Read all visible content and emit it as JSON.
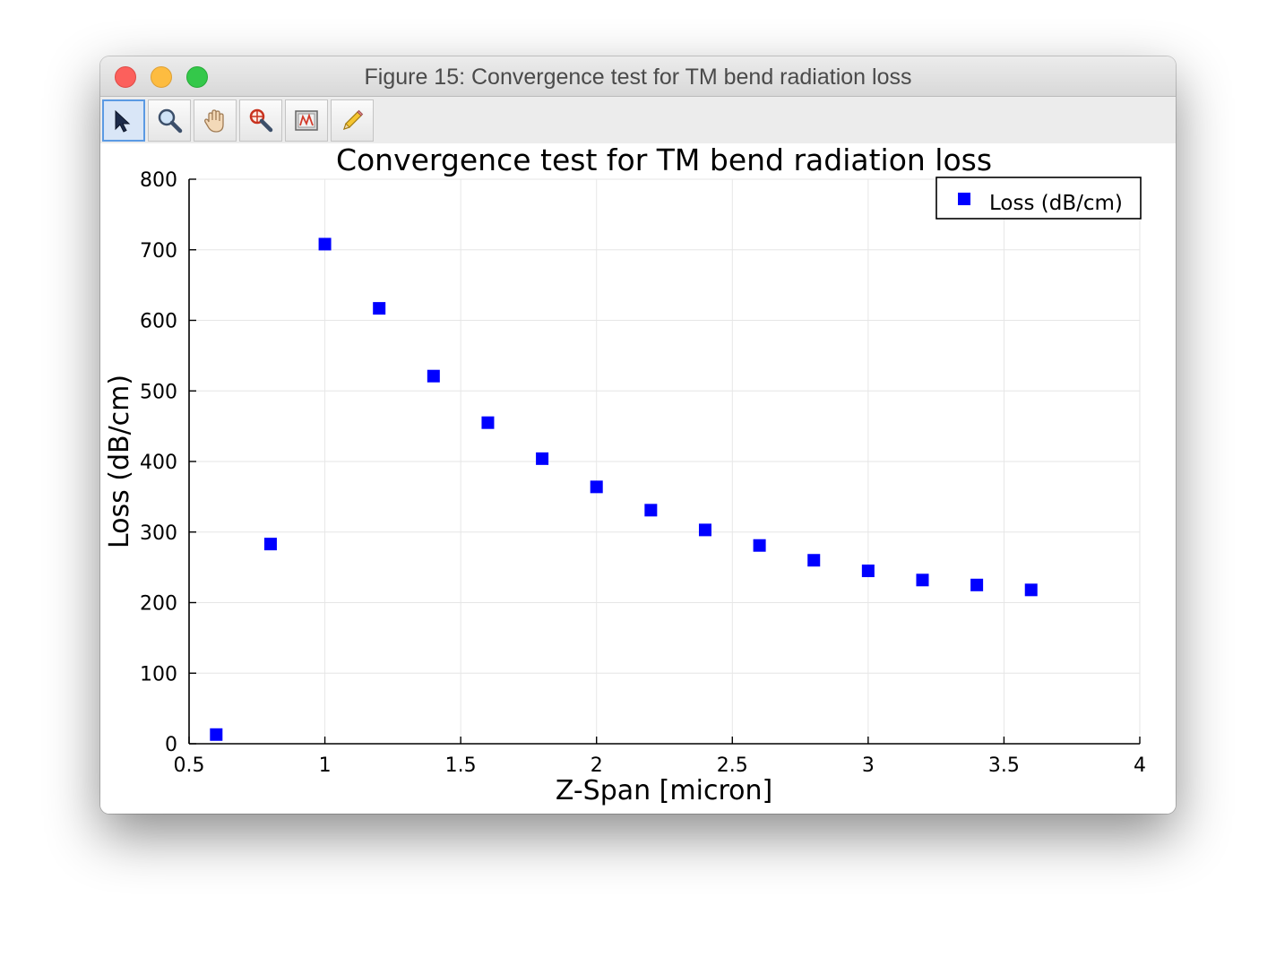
{
  "window": {
    "title": "Figure 15: Convergence test for TM bend radiation loss"
  },
  "toolbar": {
    "tools": [
      {
        "name": "pointer-icon",
        "active": true
      },
      {
        "name": "zoom-icon",
        "active": false
      },
      {
        "name": "pan-hand-icon",
        "active": false
      },
      {
        "name": "zoom-crosshair-icon",
        "active": false
      },
      {
        "name": "data-view-icon",
        "active": false
      },
      {
        "name": "pencil-icon",
        "active": false
      }
    ]
  },
  "chart_data": {
    "type": "scatter",
    "title": "Convergence test for TM bend radiation loss",
    "xlabel": "Z-Span [micron]",
    "ylabel": "Loss (dB/cm)",
    "xlim": [
      0.5,
      4
    ],
    "ylim": [
      0,
      800
    ],
    "xticks": [
      "0.5",
      "1",
      "1.5",
      "2",
      "2.5",
      "3",
      "3.5",
      "4"
    ],
    "yticks": [
      "0",
      "100",
      "200",
      "300",
      "400",
      "500",
      "600",
      "700",
      "800"
    ],
    "grid": true,
    "legend_position": "top-right",
    "series": [
      {
        "name": "Loss (dB/cm)",
        "color": "#0000ff",
        "marker": "square",
        "x": [
          0.6,
          0.8,
          1.0,
          1.2,
          1.4,
          1.6,
          1.8,
          2.0,
          2.2,
          2.4,
          2.6,
          2.8,
          3.0,
          3.2,
          3.4,
          3.6
        ],
        "y": [
          13,
          283,
          708,
          617,
          521,
          455,
          404,
          364,
          331,
          303,
          281,
          260,
          245,
          232,
          225,
          218
        ]
      }
    ]
  }
}
